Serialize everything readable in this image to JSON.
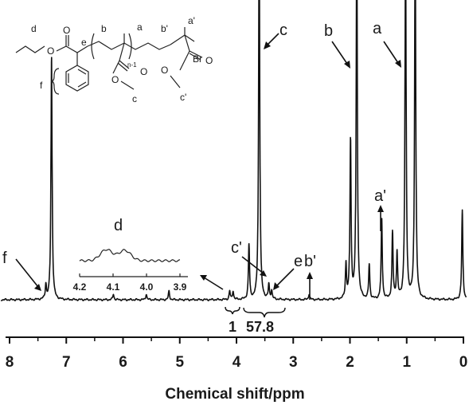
{
  "chart_data": {
    "type": "line",
    "title": "",
    "xlabel": "Chemical shift/ppm",
    "ylabel": "",
    "x_reversed": true,
    "xlim": [
      8.2,
      -0.05
    ],
    "x_ticks": [
      8,
      7,
      6,
      5,
      4,
      3,
      2,
      1,
      0
    ],
    "grid": false,
    "series": [
      {
        "peaks": [
          {
            "x": 7.36,
            "height": 0.05
          },
          {
            "x": 7.26,
            "height": 0.85
          },
          {
            "x": 6.17,
            "height": 0.02
          },
          {
            "x": 5.59,
            "height": 0.02
          },
          {
            "x": 5.19,
            "height": 0.03
          },
          {
            "x": 4.12,
            "height": 0.03
          },
          {
            "x": 4.06,
            "height": 0.03
          },
          {
            "x": 3.78,
            "height": 0.19
          },
          {
            "x": 3.6,
            "height": 1.3
          },
          {
            "x": 3.43,
            "height": 0.05
          },
          {
            "x": 3.38,
            "height": 0.03
          },
          {
            "x": 2.72,
            "height": 0.02
          },
          {
            "x": 2.07,
            "height": 0.12
          },
          {
            "x": 1.99,
            "height": 0.55
          },
          {
            "x": 1.88,
            "height": 1.3
          },
          {
            "x": 1.66,
            "height": 0.12
          },
          {
            "x": 1.44,
            "height": 0.28
          },
          {
            "x": 1.25,
            "height": 0.23
          },
          {
            "x": 1.17,
            "height": 0.16
          },
          {
            "x": 1.02,
            "height": 1.3
          },
          {
            "x": 0.85,
            "height": 1.3
          },
          {
            "x": 0.02,
            "height": 0.31
          }
        ]
      }
    ],
    "inset": {
      "label": "d",
      "x_ticks": [
        4.2,
        4.1,
        4.0,
        3.9
      ]
    },
    "annotations": {
      "peak_labels": [
        "f",
        "c'",
        "c",
        "e",
        "b'",
        "b",
        "a'",
        "a"
      ],
      "integrals": [
        "1",
        "57.8"
      ]
    },
    "structure": {
      "labels": [
        "d",
        "e",
        "b",
        "a",
        "b'",
        "a'",
        "Br",
        "f",
        "c",
        "c'"
      ],
      "subscript": "n-1",
      "atoms_o": "O"
    }
  }
}
